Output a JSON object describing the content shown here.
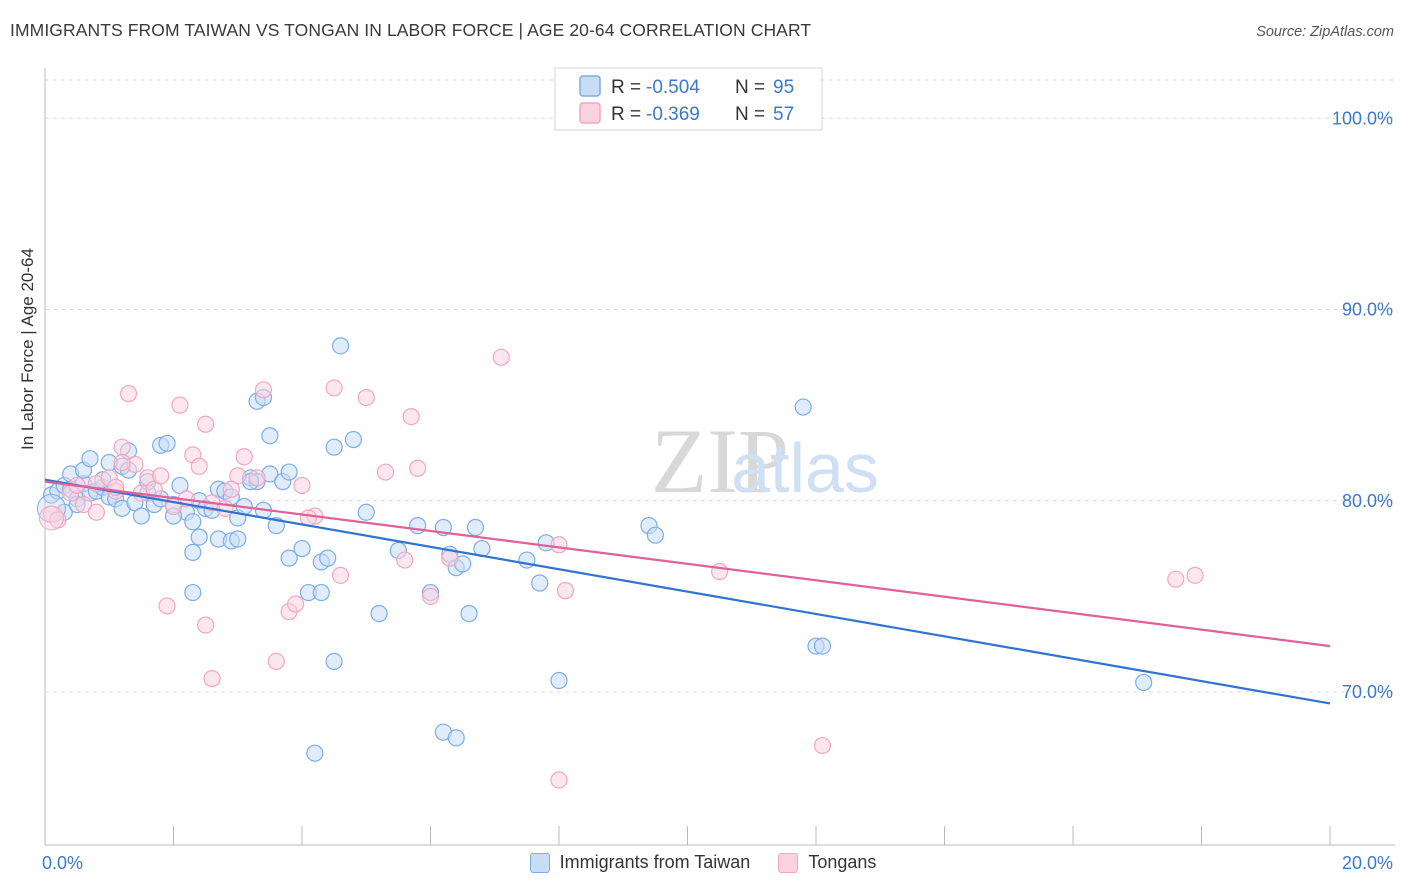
{
  "title": "IMMIGRANTS FROM TAIWAN VS TONGAN IN LABOR FORCE | AGE 20-64 CORRELATION CHART",
  "source": "Source: ZipAtlas.com",
  "watermark": "ZIPatlas",
  "chart_data": {
    "type": "scatter",
    "title": "IMMIGRANTS FROM TAIWAN VS TONGAN IN LABOR FORCE | AGE 20-64 CORRELATION CHART",
    "xlabel": "",
    "ylabel": "In Labor Force | Age 20-64",
    "xlim": [
      0,
      20
    ],
    "ylim": [
      62,
      102
    ],
    "x_tick_labels": [
      "0.0%",
      "20.0%"
    ],
    "y_ticks": [
      70,
      80,
      90,
      100
    ],
    "y_tick_labels": [
      "70.0%",
      "80.0%",
      "90.0%",
      "100.0%"
    ],
    "grid": true,
    "legend": {
      "position": "top-center",
      "entries": [
        {
          "r_label": "R =",
          "r_value": "-0.504",
          "n_label": "N =",
          "n_value": "95"
        },
        {
          "r_label": "R =",
          "r_value": "-0.369",
          "n_label": "N =",
          "n_value": "57"
        }
      ]
    },
    "series": [
      {
        "name": "Immigrants from Taiwan",
        "color": "#7baee8",
        "line_color": "#2f74d0",
        "trend": {
          "x": [
            0,
            20
          ],
          "y": [
            81.1,
            69.4
          ]
        },
        "points": [
          [
            0.1,
            80.3
          ],
          [
            0.2,
            80.5
          ],
          [
            0.3,
            80.8
          ],
          [
            0.4,
            80.6
          ],
          [
            0.5,
            80.1
          ],
          [
            0.6,
            80.9
          ],
          [
            0.7,
            80.4
          ],
          [
            0.8,
            80.5
          ],
          [
            0.9,
            80.7
          ],
          [
            1.0,
            80.2
          ],
          [
            1.1,
            80.1
          ],
          [
            1.2,
            79.6
          ],
          [
            0.3,
            79.4
          ],
          [
            0.5,
            79.8
          ],
          [
            0.4,
            81.4
          ],
          [
            0.6,
            81.6
          ],
          [
            0.7,
            82.2
          ],
          [
            0.9,
            81.1
          ],
          [
            1.0,
            82.0
          ],
          [
            1.2,
            81.8
          ],
          [
            1.3,
            81.6
          ],
          [
            1.4,
            79.9
          ],
          [
            1.5,
            79.2
          ],
          [
            1.6,
            80.4
          ],
          [
            1.7,
            79.8
          ],
          [
            1.8,
            80.1
          ],
          [
            1.6,
            81.0
          ],
          [
            1.8,
            82.9
          ],
          [
            1.9,
            83.0
          ],
          [
            2.0,
            79.8
          ],
          [
            2.1,
            80.8
          ],
          [
            2.2,
            79.4
          ],
          [
            2.3,
            78.9
          ],
          [
            2.4,
            80.0
          ],
          [
            2.5,
            79.6
          ],
          [
            2.6,
            79.5
          ],
          [
            2.7,
            80.6
          ],
          [
            2.8,
            80.5
          ],
          [
            2.9,
            80.2
          ],
          [
            3.0,
            79.1
          ],
          [
            3.1,
            79.7
          ],
          [
            3.2,
            81.2
          ],
          [
            3.3,
            81.0
          ],
          [
            3.4,
            79.5
          ],
          [
            3.5,
            81.4
          ],
          [
            3.6,
            78.7
          ],
          [
            3.7,
            81.0
          ],
          [
            3.8,
            81.5
          ],
          [
            3.3,
            85.2
          ],
          [
            3.4,
            85.4
          ],
          [
            3.5,
            83.4
          ],
          [
            2.0,
            79.2
          ],
          [
            2.3,
            77.3
          ],
          [
            2.4,
            78.1
          ],
          [
            2.7,
            78.0
          ],
          [
            2.9,
            77.9
          ],
          [
            3.0,
            78.0
          ],
          [
            3.2,
            81.0
          ],
          [
            2.3,
            75.2
          ],
          [
            3.8,
            77.0
          ],
          [
            4.0,
            77.5
          ],
          [
            4.1,
            75.2
          ],
          [
            4.3,
            76.8
          ],
          [
            4.4,
            77.0
          ],
          [
            4.5,
            71.6
          ],
          [
            4.5,
            82.8
          ],
          [
            4.8,
            83.2
          ],
          [
            4.6,
            88.1
          ],
          [
            5.0,
            79.4
          ],
          [
            5.2,
            74.1
          ],
          [
            5.5,
            77.4
          ],
          [
            5.8,
            78.7
          ],
          [
            6.0,
            75.2
          ],
          [
            6.2,
            78.6
          ],
          [
            6.3,
            77.2
          ],
          [
            6.4,
            76.5
          ],
          [
            6.5,
            76.7
          ],
          [
            6.6,
            74.1
          ],
          [
            6.7,
            78.6
          ],
          [
            6.8,
            77.5
          ],
          [
            6.2,
            67.9
          ],
          [
            6.4,
            67.6
          ],
          [
            7.5,
            76.9
          ],
          [
            7.7,
            75.7
          ],
          [
            7.8,
            77.8
          ],
          [
            8.0,
            70.6
          ],
          [
            9.4,
            78.7
          ],
          [
            9.5,
            78.2
          ],
          [
            11.8,
            84.9
          ],
          [
            12.0,
            72.4
          ],
          [
            12.1,
            72.4
          ],
          [
            17.1,
            70.5
          ],
          [
            4.2,
            66.8
          ],
          [
            4.3,
            75.2
          ],
          [
            1.3,
            82.6
          ]
        ]
      },
      {
        "name": "Tongans",
        "color": "#f4a6c0",
        "line_color": "#e0609a",
        "trend": {
          "x": [
            0,
            20
          ],
          "y": [
            81.0,
            72.4
          ]
        },
        "points": [
          [
            0.1,
            79.3
          ],
          [
            0.2,
            79.0
          ],
          [
            0.4,
            80.4
          ],
          [
            0.6,
            79.8
          ],
          [
            0.8,
            80.9
          ],
          [
            1.0,
            81.2
          ],
          [
            1.1,
            80.5
          ],
          [
            1.2,
            82.8
          ],
          [
            1.4,
            81.9
          ],
          [
            1.5,
            80.4
          ],
          [
            1.6,
            81.2
          ],
          [
            1.7,
            80.6
          ],
          [
            1.8,
            81.3
          ],
          [
            2.0,
            79.7
          ],
          [
            2.2,
            80.1
          ],
          [
            2.3,
            82.4
          ],
          [
            2.4,
            81.8
          ],
          [
            2.6,
            79.9
          ],
          [
            2.8,
            79.6
          ],
          [
            3.0,
            81.3
          ],
          [
            3.1,
            82.3
          ],
          [
            3.3,
            81.2
          ],
          [
            1.3,
            85.6
          ],
          [
            2.1,
            85.0
          ],
          [
            2.5,
            84.0
          ],
          [
            3.4,
            85.8
          ],
          [
            4.5,
            85.9
          ],
          [
            5.0,
            85.4
          ],
          [
            5.7,
            84.4
          ],
          [
            4.0,
            80.8
          ],
          [
            4.2,
            79.2
          ],
          [
            4.6,
            76.1
          ],
          [
            5.3,
            81.5
          ],
          [
            5.6,
            76.9
          ],
          [
            5.8,
            81.7
          ],
          [
            6.0,
            75.0
          ],
          [
            6.3,
            77.0
          ],
          [
            0.8,
            79.4
          ],
          [
            1.1,
            80.7
          ],
          [
            1.9,
            74.5
          ],
          [
            2.5,
            73.5
          ],
          [
            2.6,
            70.7
          ],
          [
            3.6,
            71.6
          ],
          [
            3.8,
            74.2
          ],
          [
            3.9,
            74.6
          ],
          [
            4.1,
            79.1
          ],
          [
            7.1,
            87.5
          ],
          [
            8.0,
            77.7
          ],
          [
            8.1,
            75.3
          ],
          [
            10.5,
            76.3
          ],
          [
            12.1,
            67.2
          ],
          [
            17.6,
            75.9
          ],
          [
            17.9,
            76.1
          ],
          [
            8.0,
            65.4
          ],
          [
            1.2,
            82.0
          ],
          [
            0.5,
            80.8
          ],
          [
            2.9,
            80.6
          ]
        ]
      }
    ]
  },
  "bottom_legend": [
    {
      "label": "Immigrants from Taiwan",
      "color": "#7baee8"
    },
    {
      "label": "Tongans",
      "color": "#f4a6c0"
    }
  ]
}
